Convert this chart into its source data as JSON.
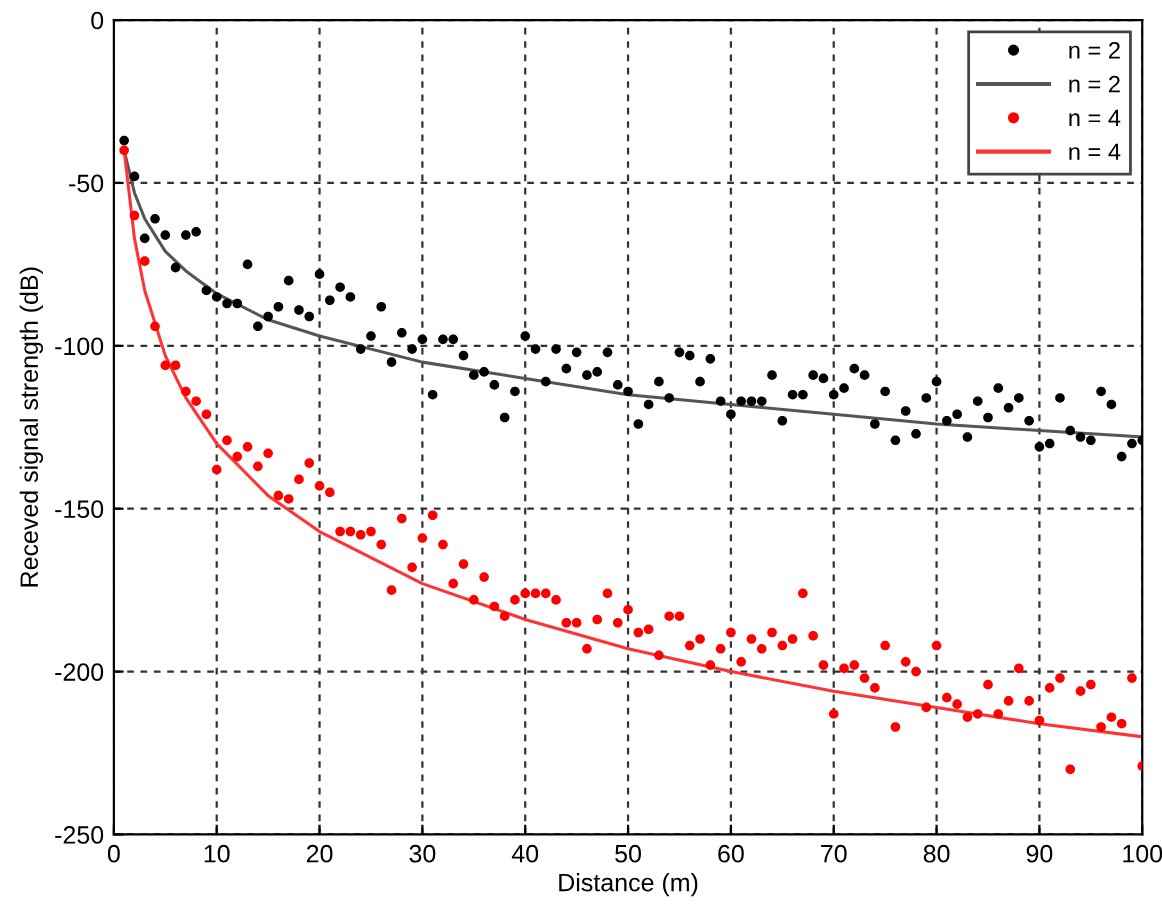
{
  "chart_data": {
    "type": "scatter",
    "xlabel": "Distance (m)",
    "ylabel": "Receved signal strength (dB)",
    "xlim": [
      0,
      100
    ],
    "ylim": [
      -250,
      0
    ],
    "xticks": [
      0,
      10,
      20,
      30,
      40,
      50,
      60,
      70,
      80,
      90,
      100
    ],
    "yticks": [
      -250,
      -200,
      -150,
      -100,
      -50,
      0
    ],
    "grid": true,
    "legend": "top right",
    "marker": "circle",
    "series": [
      {
        "name": "n = 2",
        "color": "#000000",
        "x": [
          1,
          2,
          3,
          4,
          5,
          6,
          7,
          8,
          9,
          10,
          11,
          12,
          13,
          14,
          15,
          16,
          17,
          18,
          19,
          20,
          21,
          22,
          23,
          24,
          25,
          26,
          27,
          28,
          29,
          30,
          31,
          32,
          33,
          34,
          35,
          36,
          37,
          38,
          39,
          40,
          41,
          42,
          43,
          44,
          45,
          46,
          47,
          48,
          49,
          50,
          51,
          52,
          53,
          54,
          55,
          56,
          57,
          58,
          59,
          60,
          61,
          62,
          63,
          64,
          65,
          66,
          67,
          68,
          69,
          70,
          71,
          72,
          73,
          74,
          75,
          76,
          77,
          78,
          79,
          80,
          81,
          82,
          83,
          84,
          85,
          86,
          87,
          88,
          89,
          90,
          91,
          92,
          93,
          94,
          95,
          96,
          97,
          98,
          99,
          100
        ],
        "values": [
          -37,
          -48,
          -67,
          -61,
          -66,
          -76,
          -66,
          -65,
          -83,
          -85,
          -87,
          -87,
          -75,
          -94,
          -91,
          -88,
          -80,
          -89,
          -91,
          -78,
          -86,
          -82,
          -85,
          -101,
          -97,
          -88,
          -105,
          -96,
          -101,
          -98,
          -115,
          -98,
          -98,
          -103,
          -109,
          -108,
          -112,
          -122,
          -114,
          -97,
          -101,
          -111,
          -101,
          -107,
          -102,
          -109,
          -108,
          -102,
          -112,
          -114,
          -124,
          -118,
          -111,
          -116,
          -102,
          -103,
          -111,
          -104,
          -117,
          -121,
          -117,
          -117,
          -117,
          -109,
          -123,
          -115,
          -115,
          -109,
          -110,
          -115,
          -113,
          -107,
          -109,
          -124,
          -114,
          -129,
          -120,
          -127,
          -116,
          -111,
          -123,
          -121,
          -128,
          -117,
          -122,
          -113,
          -119,
          -116,
          -123,
          -131,
          -130,
          -116,
          -126,
          -128,
          -129,
          -114,
          -118,
          -134,
          -130,
          -129
        ]
      },
      {
        "name": "n = 2",
        "type": "line",
        "color": "#555555",
        "marker": "none",
        "x": [
          1,
          2,
          3,
          5,
          7,
          10,
          15,
          20,
          30,
          40,
          50,
          60,
          70,
          80,
          90,
          100
        ],
        "values": [
          -40,
          -53,
          -61,
          -71,
          -77,
          -84,
          -92,
          -97,
          -105,
          -110,
          -115,
          -118,
          -121,
          -124,
          -126,
          -128
        ]
      },
      {
        "name": "n = 4",
        "color": "#ff0000",
        "x": [
          1,
          2,
          3,
          4,
          5,
          6,
          7,
          8,
          9,
          10,
          11,
          12,
          13,
          14,
          15,
          16,
          17,
          18,
          19,
          20,
          21,
          22,
          23,
          24,
          25,
          26,
          27,
          28,
          29,
          30,
          31,
          32,
          33,
          34,
          35,
          36,
          37,
          38,
          39,
          40,
          41,
          42,
          43,
          44,
          45,
          46,
          47,
          48,
          49,
          50,
          51,
          52,
          53,
          54,
          55,
          56,
          57,
          58,
          59,
          60,
          61,
          62,
          63,
          64,
          65,
          66,
          67,
          68,
          69,
          70,
          71,
          72,
          73,
          74,
          75,
          76,
          77,
          78,
          79,
          80,
          81,
          82,
          83,
          84,
          85,
          86,
          87,
          88,
          89,
          90,
          91,
          92,
          93,
          94,
          95,
          96,
          97,
          98,
          99,
          100
        ],
        "values": [
          -40,
          -60,
          -74,
          -94,
          -106,
          -106,
          -114,
          -117,
          -121,
          -138,
          -129,
          -134,
          -131,
          -137,
          -133,
          -146,
          -147,
          -141,
          -136,
          -143,
          -145,
          -157,
          -157,
          -158,
          -157,
          -161,
          -175,
          -153,
          -168,
          -159,
          -152,
          -161,
          -173,
          -167,
          -178,
          -171,
          -180,
          -183,
          -178,
          -176,
          -176,
          -176,
          -178,
          -185,
          -185,
          -193,
          -184,
          -176,
          -185,
          -181,
          -188,
          -187,
          -195,
          -183,
          -183,
          -192,
          -190,
          -198,
          -193,
          -188,
          -197,
          -190,
          -193,
          -188,
          -192,
          -190,
          -176,
          -189,
          -198,
          -213,
          -199,
          -198,
          -202,
          -205,
          -192,
          -217,
          -197,
          -200,
          -211,
          -192,
          -208,
          -210,
          -214,
          -213,
          -204,
          -213,
          -209,
          -199,
          -209,
          -215,
          -205,
          -202,
          -230,
          -206,
          -204,
          -217,
          -214,
          -216,
          -202,
          -229
        ]
      },
      {
        "name": "n = 4",
        "type": "line",
        "color": "#ff3333",
        "marker": "none",
        "x": [
          1,
          2,
          3,
          5,
          7,
          10,
          15,
          20,
          30,
          40,
          50,
          60,
          70,
          80,
          90,
          100
        ],
        "values": [
          -40,
          -67,
          -83,
          -103,
          -116,
          -130,
          -146,
          -157,
          -173,
          -184,
          -193,
          -200,
          -206,
          -211,
          -216,
          -220
        ]
      }
    ]
  }
}
